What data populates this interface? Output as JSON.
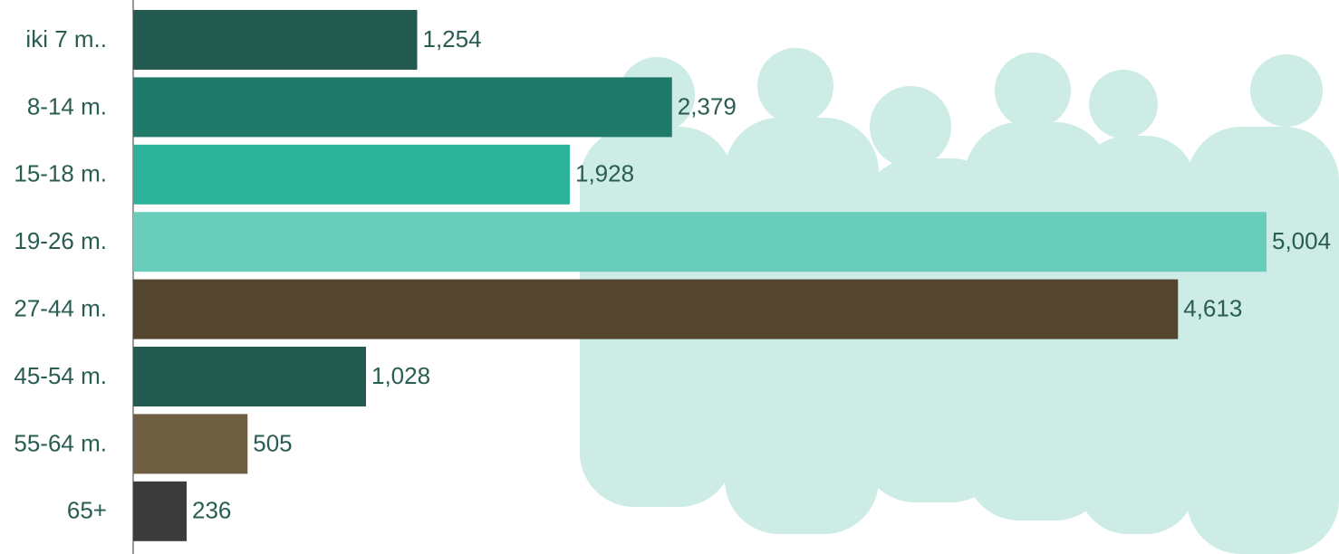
{
  "chart_data": {
    "type": "barh",
    "categories": [
      "iki 7 m..",
      "8-14 m.",
      "15-18 m.",
      "19-26 m.",
      "27-44 m.",
      "45-54 m.",
      "55-64 m.",
      "65+"
    ],
    "values": [
      1254,
      2379,
      1928,
      5004,
      4613,
      1028,
      505,
      236
    ],
    "value_labels": [
      "1,254",
      "2,379",
      "1,928",
      "5,004",
      "4,613",
      "1,028",
      "505",
      "236"
    ],
    "colors": [
      "#235a50",
      "#1f7a69",
      "#2cb39a",
      "#69cdbb",
      "#54452f",
      "#235a50",
      "#6e5f42",
      "#3b3b3b"
    ],
    "xlim": [
      0,
      5004
    ]
  }
}
